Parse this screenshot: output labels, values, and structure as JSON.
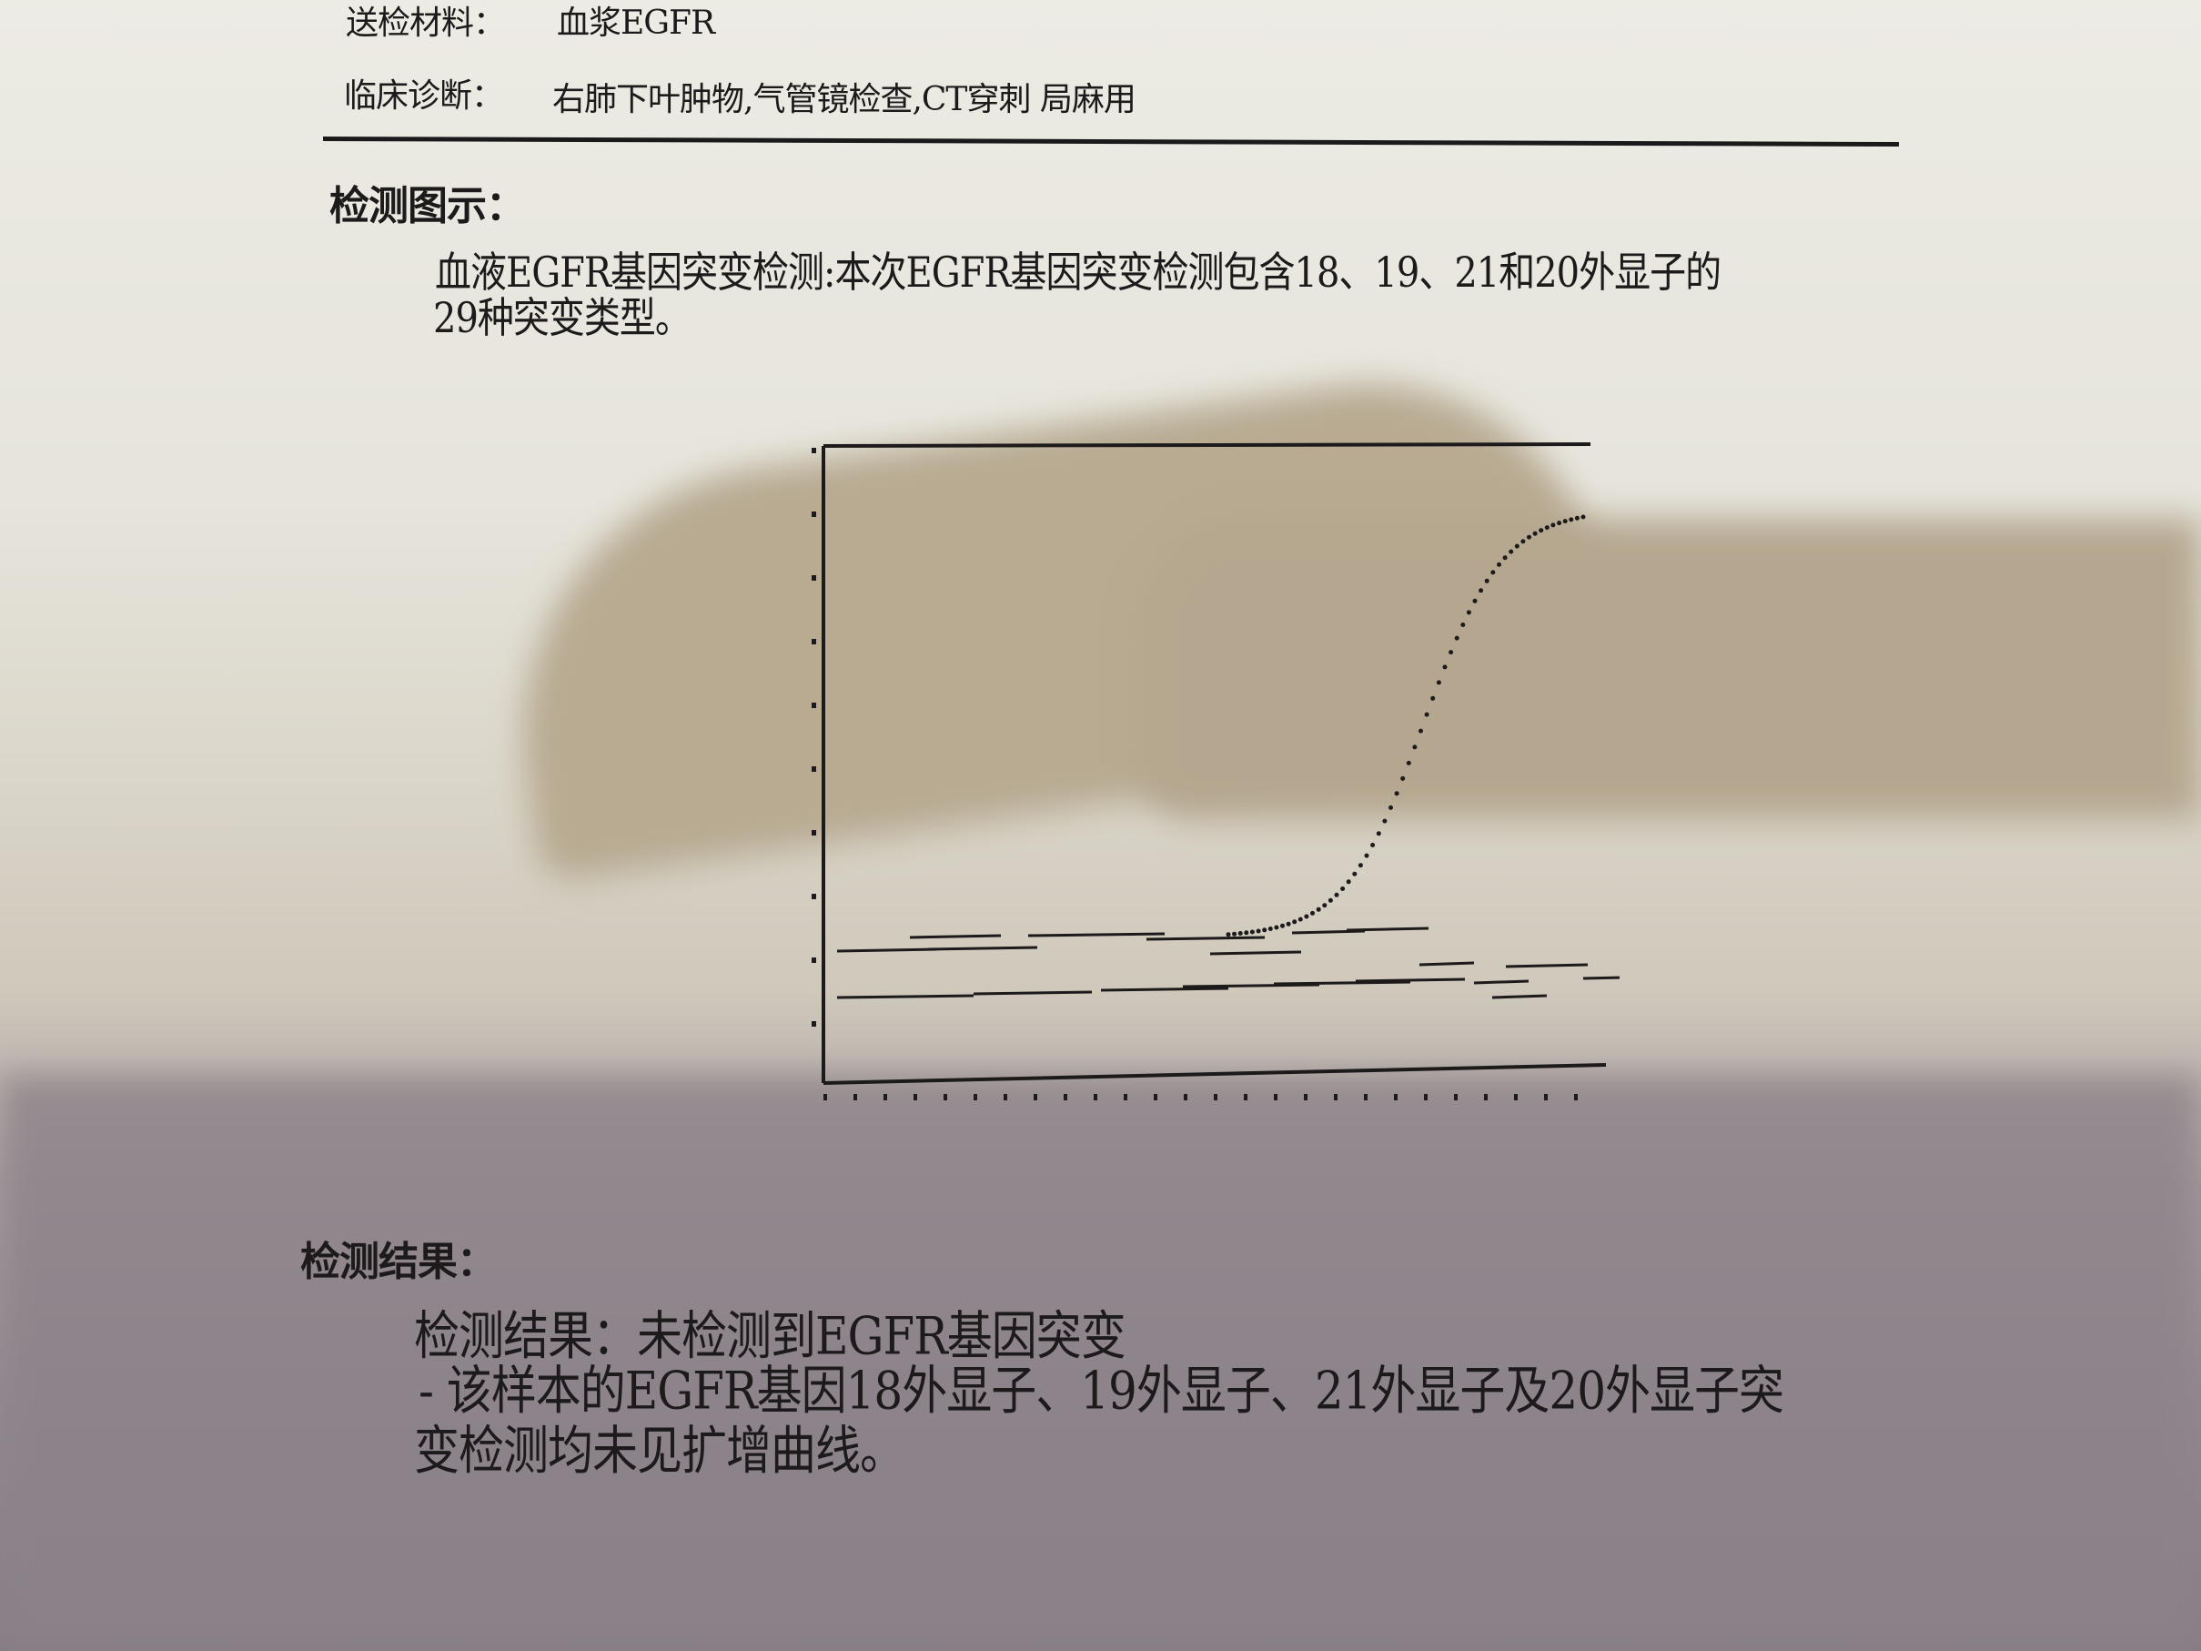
{
  "header": {
    "specimen_label": "送检材料：",
    "specimen_value": "血浆EGFR",
    "diagnosis_label": "临床诊断：",
    "diagnosis_value": "右肺下叶肿物,气管镜检查,CT穿刺 局麻用"
  },
  "figure_section": {
    "heading": "检测图示：",
    "description_line1": "血液EGFR基因突变检测:本次EGFR基因突变检测包含18、19、21和20外显子的",
    "description_line2": "29种突变类型。"
  },
  "result_section": {
    "heading": "检测结果：",
    "line1": "检测结果：未检测到EGFR基因突变",
    "line2": "- 该样本的EGFR基因18外显子、19外显子、21外显子及20外显子突",
    "line3": "变检测均未见扩增曲线。"
  },
  "colors": {
    "ink": "#1c1a1a",
    "paper": "#ecebe4",
    "shadow": "#b3a78f"
  }
}
